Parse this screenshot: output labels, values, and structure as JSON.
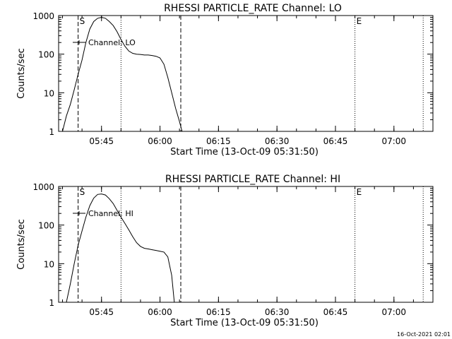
{
  "footer": {
    "timestamp": "16-Oct-2021 02:01"
  },
  "chart_data": [
    {
      "type": "line",
      "title": "RHESSI PARTICLE_RATE Channel: LO",
      "xlabel": "Start Time (13-Oct-09 05:31:50)",
      "ylabel": "Counts/sec",
      "yscale": "log",
      "ylim": [
        1,
        1000
      ],
      "xlim": [
        "05:34:00",
        "07:10:00"
      ],
      "xticks": [
        "05:45",
        "06:00",
        "06:15",
        "06:30",
        "06:45",
        "07:00"
      ],
      "yticks": [
        "1",
        "10",
        "100",
        "1000"
      ],
      "legend": {
        "entry": "Channel: LO",
        "placement": "top-left"
      },
      "markers": [
        {
          "label": "S",
          "time": "05:39:00",
          "style": "dashed"
        },
        {
          "label": "",
          "time": "05:50:00",
          "style": "dotted"
        },
        {
          "label": "",
          "time": "06:05:20",
          "style": "dashed"
        },
        {
          "label": "E",
          "time": "06:50:00",
          "style": "dotted"
        },
        {
          "label": "",
          "time": "07:07:30",
          "style": "dotted"
        }
      ],
      "series": [
        {
          "name": "Channel: LO",
          "x": [
            "05:35:00",
            "05:36:00",
            "05:37:00",
            "05:38:00",
            "05:39:00",
            "05:40:00",
            "05:41:00",
            "05:42:00",
            "05:43:00",
            "05:44:00",
            "05:45:00",
            "05:46:00",
            "05:47:00",
            "05:48:00",
            "05:49:00",
            "05:50:00",
            "05:51:00",
            "05:52:00",
            "05:53:00",
            "05:54:00",
            "05:55:00",
            "05:56:00",
            "05:57:00",
            "05:58:00",
            "05:59:00",
            "06:00:00",
            "06:01:00",
            "06:02:00",
            "06:03:00",
            "06:04:00",
            "06:05:00",
            "06:05:40"
          ],
          "y": [
            1,
            2.5,
            5,
            12,
            30,
            70,
            200,
            450,
            700,
            850,
            900,
            850,
            700,
            550,
            380,
            240,
            160,
            120,
            105,
            100,
            98,
            95,
            95,
            92,
            88,
            80,
            55,
            25,
            10,
            4,
            1.8,
            1
          ]
        }
      ]
    },
    {
      "type": "line",
      "title": "RHESSI PARTICLE_RATE Channel: HI",
      "xlabel": "Start Time (13-Oct-09 05:31:50)",
      "ylabel": "Counts/sec",
      "yscale": "log",
      "ylim": [
        1,
        1000
      ],
      "xlim": [
        "05:34:00",
        "07:10:00"
      ],
      "xticks": [
        "05:45",
        "06:00",
        "06:15",
        "06:30",
        "06:45",
        "07:00"
      ],
      "yticks": [
        "1",
        "10",
        "100",
        "1000"
      ],
      "legend": {
        "entry": "Channel: HI",
        "placement": "top-left"
      },
      "markers": [
        {
          "label": "S",
          "time": "05:39:00",
          "style": "dashed"
        },
        {
          "label": "",
          "time": "05:50:00",
          "style": "dotted"
        },
        {
          "label": "",
          "time": "06:05:20",
          "style": "dashed"
        },
        {
          "label": "E",
          "time": "06:50:00",
          "style": "dotted"
        },
        {
          "label": "",
          "time": "07:07:30",
          "style": "dotted"
        }
      ],
      "series": [
        {
          "name": "Channel: HI",
          "x": [
            "05:36:00",
            "05:37:00",
            "05:38:00",
            "05:39:00",
            "05:40:00",
            "05:41:00",
            "05:42:00",
            "05:43:00",
            "05:44:00",
            "05:45:00",
            "05:46:00",
            "05:47:00",
            "05:48:00",
            "05:49:00",
            "05:50:00",
            "05:51:00",
            "05:52:00",
            "05:53:00",
            "05:54:00",
            "05:55:00",
            "05:56:00",
            "05:57:00",
            "05:58:00",
            "05:59:00",
            "06:00:00",
            "06:01:00",
            "06:02:00",
            "06:03:00",
            "06:03:40"
          ],
          "y": [
            1,
            3,
            10,
            30,
            70,
            160,
            320,
            500,
            620,
            640,
            600,
            480,
            360,
            240,
            160,
            110,
            75,
            50,
            35,
            28,
            25,
            24,
            23,
            22,
            21,
            20,
            15,
            5,
            1
          ]
        }
      ]
    }
  ]
}
